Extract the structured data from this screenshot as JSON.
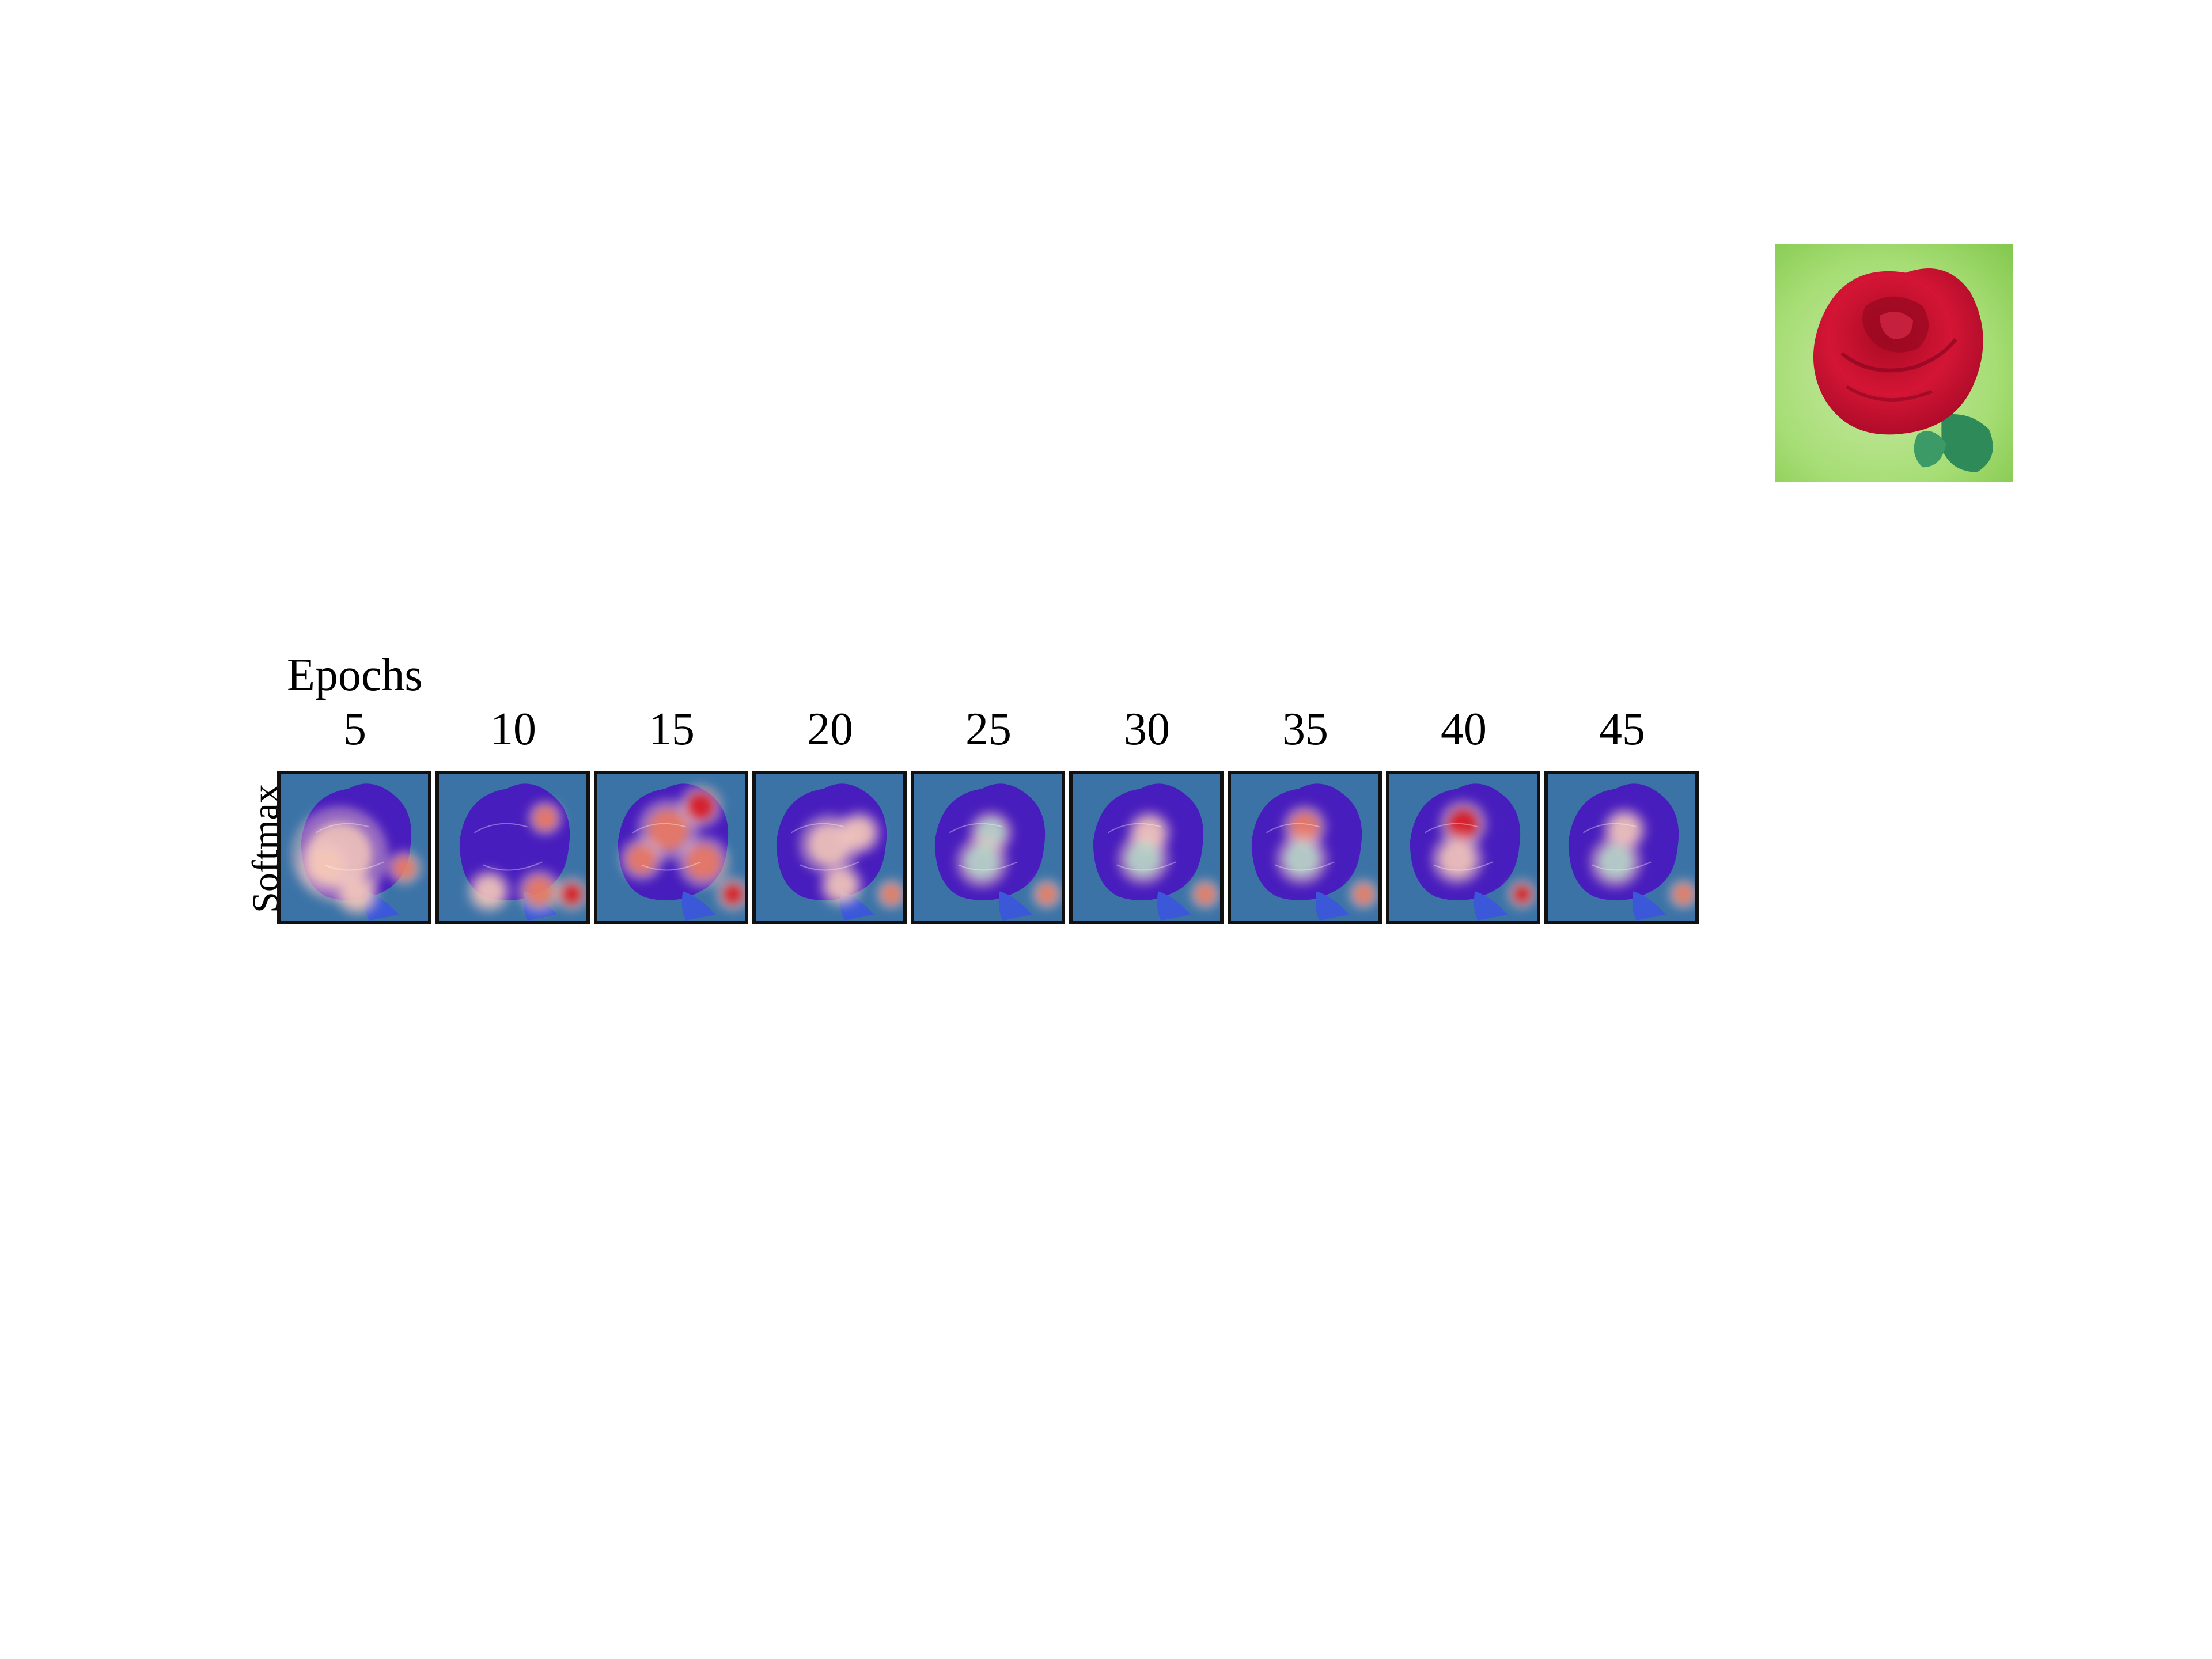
{
  "figure": {
    "column_header": "Epochs",
    "row_label": "Softmax",
    "epochs": [
      "5",
      "10",
      "15",
      "20",
      "25",
      "30",
      "35",
      "40",
      "45"
    ],
    "colors": {
      "heatmap_low": "#1a2fb0",
      "heatmap_mid": "#7fd3a8",
      "heatmap_high": "#e01818",
      "rose": "#c8102e",
      "background_green": "#8fd35a"
    }
  }
}
